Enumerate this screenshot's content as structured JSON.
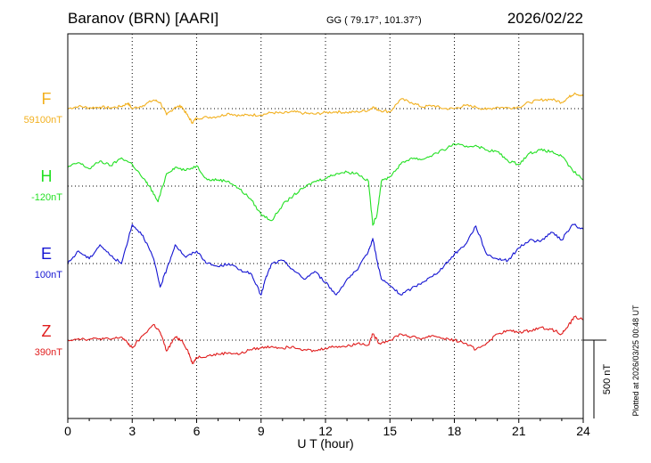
{
  "header": {
    "station": "Baranov (BRN)  [AARI]",
    "coords": "GG ( 79.17°, 101.37°)",
    "date": "2026/02/22"
  },
  "plotted_note": "Plotted at 2026/03/25 00:48 UT",
  "scale_bar": {
    "label": "500 nT",
    "value_nT": 500
  },
  "colors": {
    "F": "#f2b01e",
    "H": "#22e022",
    "E": "#1414d2",
    "Z": "#e01c1c"
  },
  "chart_data": {
    "type": "line",
    "xlabel": "U T (hour)",
    "xlim": [
      0,
      24
    ],
    "x_ticks": [
      0,
      3,
      6,
      9,
      12,
      15,
      18,
      21,
      24
    ],
    "x_tick_labels": [
      "0",
      "3",
      "6",
      "9",
      "12",
      "15",
      "18",
      "21",
      "24"
    ],
    "grid": true,
    "series": [
      {
        "name": "F",
        "baseline_label": "59100nT",
        "x": [
          0,
          0.5,
          1,
          1.5,
          2,
          2.5,
          2.8,
          3,
          3.5,
          4,
          4.3,
          4.6,
          5,
          5.3,
          5.6,
          5.8,
          6,
          6.5,
          7,
          7.5,
          8,
          8.5,
          9,
          9.5,
          10,
          10.5,
          11,
          11.5,
          12,
          12.5,
          13,
          13.5,
          14,
          14.2,
          14.5,
          15,
          15.5,
          16,
          16.5,
          17,
          17.5,
          18,
          18.5,
          19,
          19.5,
          20,
          20.5,
          21,
          21.5,
          22,
          22.5,
          23,
          23.3,
          23.6,
          24
        ],
        "values": [
          0,
          15,
          5,
          10,
          5,
          15,
          35,
          0,
          20,
          55,
          40,
          -40,
          10,
          15,
          -50,
          -90,
          -60,
          -55,
          -50,
          -30,
          -45,
          -40,
          -40,
          -25,
          -30,
          -20,
          -30,
          -35,
          -25,
          -20,
          -25,
          -20,
          -10,
          10,
          -10,
          -20,
          60,
          40,
          10,
          20,
          0,
          0,
          20,
          10,
          -5,
          10,
          5,
          10,
          40,
          55,
          60,
          40,
          70,
          100,
          80
        ]
      },
      {
        "name": "H",
        "baseline_label": "-120nT",
        "x": [
          0,
          0.5,
          1,
          1.5,
          2,
          2.5,
          3,
          3.5,
          3.8,
          4.2,
          4.6,
          5,
          5.5,
          6,
          6.5,
          7,
          7.5,
          8,
          8.5,
          9,
          9.5,
          10,
          10.5,
          11,
          11.5,
          12,
          12.5,
          13,
          13.5,
          14,
          14.2,
          14.4,
          14.6,
          15,
          15.5,
          16,
          16.5,
          17,
          17.5,
          18,
          18.5,
          19,
          19.5,
          20,
          20.5,
          21,
          21.5,
          22,
          22.5,
          23,
          23.5,
          24
        ],
        "values": [
          120,
          150,
          110,
          160,
          130,
          180,
          140,
          50,
          0,
          -100,
          80,
          120,
          100,
          130,
          40,
          40,
          30,
          -20,
          -80,
          -180,
          -220,
          -120,
          -60,
          -10,
          30,
          50,
          80,
          90,
          80,
          30,
          -250,
          -180,
          30,
          60,
          140,
          180,
          170,
          200,
          230,
          270,
          250,
          260,
          230,
          220,
          160,
          140,
          210,
          230,
          220,
          190,
          100,
          40
        ]
      },
      {
        "name": "E",
        "baseline_label": "100nT",
        "x": [
          0,
          0.5,
          1,
          1.5,
          2,
          2.5,
          3,
          3.5,
          4,
          4.3,
          4.6,
          5,
          5.5,
          6,
          6.5,
          7,
          7.5,
          8,
          8.5,
          9,
          9.2,
          9.5,
          10,
          10.5,
          11,
          11.5,
          12,
          12.5,
          13,
          13.5,
          14,
          14.2,
          14.4,
          14.6,
          15,
          15.5,
          16,
          16.5,
          17,
          17.5,
          18,
          18.5,
          19,
          19.5,
          20,
          20.5,
          21,
          21.5,
          22,
          22.5,
          23,
          23.5,
          24
        ],
        "values": [
          0,
          80,
          30,
          120,
          50,
          0,
          250,
          180,
          30,
          -150,
          -40,
          120,
          40,
          80,
          0,
          -20,
          0,
          -40,
          -60,
          -200,
          -100,
          0,
          20,
          -40,
          -100,
          -50,
          -120,
          -200,
          -100,
          -40,
          80,
          160,
          20,
          -100,
          -140,
          -200,
          -160,
          -120,
          -80,
          -20,
          60,
          120,
          240,
          60,
          30,
          20,
          100,
          150,
          140,
          200,
          150,
          250,
          220
        ]
      },
      {
        "name": "Z",
        "baseline_label": "390nT",
        "x": [
          0,
          0.5,
          1,
          1.5,
          2,
          2.5,
          2.8,
          3,
          3.5,
          4,
          4.3,
          4.6,
          5,
          5.3,
          5.6,
          5.8,
          6,
          6.5,
          7,
          7.5,
          8,
          8.5,
          9,
          9.5,
          10,
          10.5,
          11,
          11.5,
          12,
          12.5,
          13,
          13.5,
          14,
          14.2,
          14.5,
          15,
          15.5,
          16,
          16.5,
          17,
          17.5,
          18,
          18.5,
          19,
          19.5,
          20,
          20.5,
          21,
          21.5,
          22,
          22.5,
          23,
          23.3,
          23.6,
          24
        ],
        "values": [
          0,
          10,
          5,
          10,
          5,
          20,
          -20,
          -50,
          30,
          100,
          50,
          -70,
          20,
          0,
          -70,
          -150,
          -110,
          -100,
          -90,
          -80,
          -90,
          -60,
          -50,
          -40,
          -50,
          -40,
          -60,
          -70,
          -50,
          -40,
          -40,
          -20,
          -30,
          40,
          -20,
          0,
          40,
          20,
          10,
          30,
          10,
          0,
          -20,
          -60,
          -20,
          40,
          60,
          50,
          60,
          80,
          70,
          40,
          90,
          150,
          130
        ]
      }
    ]
  }
}
